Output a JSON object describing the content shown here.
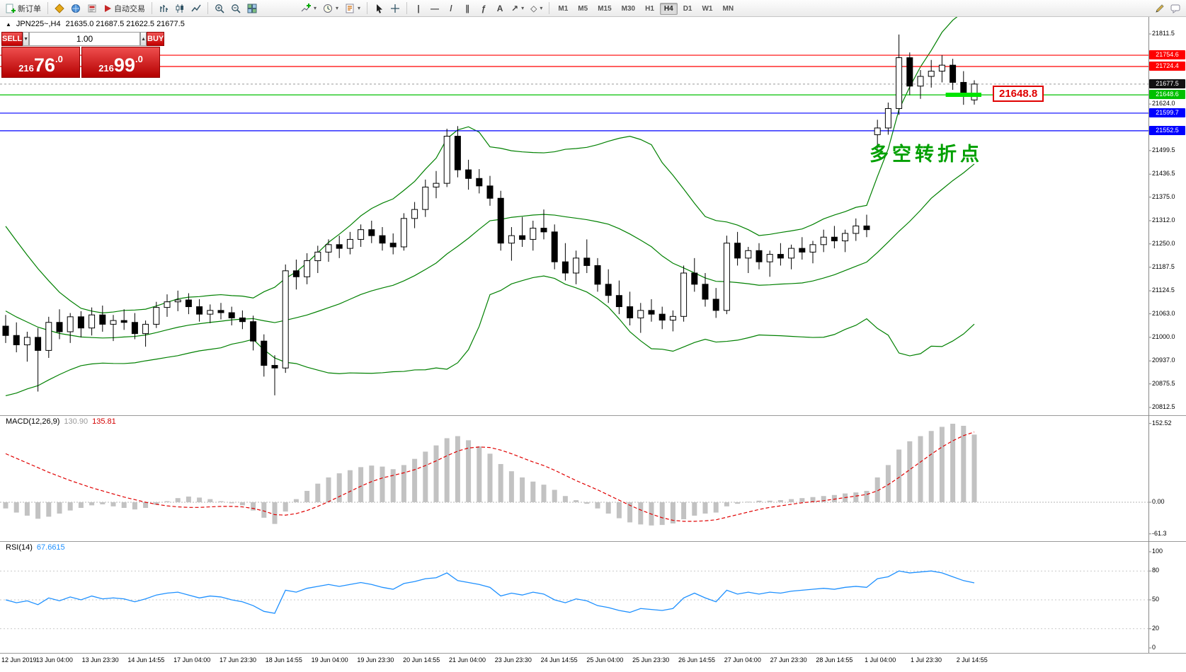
{
  "colors": {
    "bb_green": "#008000",
    "red_line": "#FF0000",
    "green_line": "#00C000",
    "blue_line": "#0000FF",
    "macd_hist": "#C2C2C2",
    "macd_signal": "#E00000",
    "rsi_line": "#1E90FF",
    "annotation_green": "#00A000",
    "highlight_lime": "#00E400",
    "panel_red": "#D40000"
  },
  "toolbar": {
    "new_order": "新订单",
    "autotrading": "自动交易",
    "timeframes": [
      "M1",
      "M5",
      "M15",
      "M30",
      "H1",
      "H4",
      "D1",
      "W1",
      "MN"
    ],
    "active_timeframe": "H4"
  },
  "chart": {
    "marker": "▲",
    "symbol_period": "JPN225~,H4",
    "ohlc": "21635.0 21687.5 21622.5 21677.5"
  },
  "trade_panel": {
    "sell_label": "SELL",
    "buy_label": "BUY",
    "volume": "1.00",
    "sell_price": {
      "pre": "216",
      "big": "76",
      "dec": ".0",
      "full": "21676.0"
    },
    "buy_price": {
      "pre": "216",
      "big": "99",
      "dec": ".0",
      "full": "21699.0"
    }
  },
  "annotation": {
    "text": "多空转折点"
  },
  "time_axis": {
    "labels": [
      "12 Jun 2019",
      "13 Jun 04:00",
      "13 Jun 23:30",
      "14 Jun 14:55",
      "17 Jun 04:00",
      "17 Jun 23:30",
      "18 Jun 14:55",
      "19 Jun 04:00",
      "19 Jun 23:30",
      "20 Jun 14:55",
      "21 Jun 04:00",
      "23 Jun 23:30",
      "24 Jun 14:55",
      "25 Jun 04:00",
      "25 Jun 23:30",
      "26 Jun 14:55",
      "27 Jun 04:00",
      "27 Jun 23:30",
      "28 Jun 14:55",
      "1 Jul 04:00",
      "1 Jul 23:30",
      "2 Jul 14:55"
    ]
  },
  "chart_data": {
    "type": "candlestick",
    "symbol": "JPN225",
    "timeframe": "H4",
    "price_axis_labels": [
      "21811.5",
      "21624.0",
      "21499.5",
      "21436.5",
      "21375.0",
      "21312.0",
      "21250.0",
      "21187.5",
      "21124.5",
      "21063.0",
      "21000.0",
      "20937.0",
      "20875.5",
      "20812.5"
    ],
    "candles": [
      [
        21030,
        21060,
        20985,
        21005
      ],
      [
        21005,
        21040,
        20960,
        20980
      ],
      [
        20980,
        21015,
        20935,
        21000
      ],
      [
        21000,
        21025,
        20855,
        20965
      ],
      [
        20965,
        21055,
        20945,
        21040
      ],
      [
        21040,
        21075,
        20995,
        21015
      ],
      [
        21015,
        21065,
        20985,
        21055
      ],
      [
        21055,
        21070,
        21000,
        21025
      ],
      [
        21025,
        21080,
        21005,
        21060
      ],
      [
        21060,
        21085,
        21015,
        21035
      ],
      [
        21035,
        21060,
        20990,
        21045
      ],
      [
        21045,
        21075,
        21020,
        21040
      ],
      [
        21040,
        21065,
        20995,
        21010
      ],
      [
        21010,
        21045,
        20975,
        21035
      ],
      [
        21035,
        21095,
        21025,
        21080
      ],
      [
        21080,
        21115,
        21055,
        21095
      ],
      [
        21095,
        21125,
        21070,
        21100
      ],
      [
        21100,
        21118,
        21062,
        21082
      ],
      [
        21082,
        21102,
        21042,
        21062
      ],
      [
        21062,
        21088,
        21038,
        21072
      ],
      [
        21072,
        21092,
        21048,
        21066
      ],
      [
        21066,
        21082,
        21032,
        21052
      ],
      [
        21052,
        21072,
        21022,
        21042
      ],
      [
        21042,
        21058,
        20965,
        20990
      ],
      [
        20990,
        21008,
        20895,
        20925
      ],
      [
        20925,
        20952,
        20845,
        20918
      ],
      [
        20918,
        21195,
        20905,
        21178
      ],
      [
        21178,
        21208,
        21128,
        21162
      ],
      [
        21162,
        21225,
        21142,
        21205
      ],
      [
        21205,
        21245,
        21172,
        21228
      ],
      [
        21228,
        21262,
        21202,
        21248
      ],
      [
        21248,
        21272,
        21212,
        21238
      ],
      [
        21238,
        21282,
        21222,
        21262
      ],
      [
        21262,
        21302,
        21242,
        21288
      ],
      [
        21288,
        21312,
        21252,
        21272
      ],
      [
        21272,
        21295,
        21232,
        21252
      ],
      [
        21252,
        21278,
        21222,
        21242
      ],
      [
        21242,
        21332,
        21232,
        21318
      ],
      [
        21318,
        21362,
        21292,
        21342
      ],
      [
        21342,
        21422,
        21322,
        21402
      ],
      [
        21402,
        21445,
        21372,
        21412
      ],
      [
        21412,
        21558,
        21402,
        21538
      ],
      [
        21538,
        21565,
        21428,
        21448
      ],
      [
        21448,
        21475,
        21395,
        21425
      ],
      [
        21425,
        21450,
        21385,
        21405
      ],
      [
        21405,
        21432,
        21352,
        21372
      ],
      [
        21372,
        21392,
        21232,
        21252
      ],
      [
        21252,
        21295,
        21205,
        21272
      ],
      [
        21272,
        21322,
        21242,
        21262
      ],
      [
        21262,
        21312,
        21232,
        21292
      ],
      [
        21292,
        21342,
        21262,
        21282
      ],
      [
        21282,
        21302,
        21182,
        21202
      ],
      [
        21202,
        21252,
        21152,
        21172
      ],
      [
        21172,
        21232,
        21142,
        21212
      ],
      [
        21212,
        21262,
        21172,
        21192
      ],
      [
        21192,
        21212,
        21122,
        21142
      ],
      [
        21142,
        21182,
        21092,
        21112
      ],
      [
        21112,
        21152,
        21062,
        21082
      ],
      [
        21082,
        21122,
        21032,
        21052
      ],
      [
        21052,
        21092,
        21012,
        21072
      ],
      [
        21072,
        21102,
        21042,
        21062
      ],
      [
        21062,
        21082,
        21022,
        21046
      ],
      [
        21046,
        21072,
        21016,
        21056
      ],
      [
        21056,
        21192,
        21042,
        21172
      ],
      [
        21172,
        21212,
        21122,
        21142
      ],
      [
        21142,
        21172,
        21082,
        21102
      ],
      [
        21102,
        21132,
        21052,
        21072
      ],
      [
        21072,
        21272,
        21062,
        21252
      ],
      [
        21252,
        21282,
        21192,
        21212
      ],
      [
        21212,
        21242,
        21172,
        21232
      ],
      [
        21232,
        21252,
        21182,
        21202
      ],
      [
        21202,
        21232,
        21162,
        21222
      ],
      [
        21222,
        21252,
        21192,
        21212
      ],
      [
        21212,
        21248,
        21182,
        21238
      ],
      [
        21238,
        21268,
        21208,
        21228
      ],
      [
        21228,
        21258,
        21198,
        21248
      ],
      [
        21248,
        21288,
        21228,
        21268
      ],
      [
        21268,
        21298,
        21238,
        21258
      ],
      [
        21258,
        21288,
        21228,
        21278
      ],
      [
        21278,
        21318,
        21258,
        21298
      ],
      [
        21298,
        21328,
        21268,
        21288
      ],
      [
        21542,
        21582,
        21505,
        21560
      ],
      [
        21560,
        21628,
        21542,
        21612
      ],
      [
        21612,
        21810,
        21595,
        21748
      ],
      [
        21748,
        21762,
        21648,
        21672
      ],
      [
        21672,
        21715,
        21638,
        21698
      ],
      [
        21698,
        21742,
        21668,
        21712
      ],
      [
        21712,
        21755,
        21682,
        21728
      ],
      [
        21728,
        21745,
        21662,
        21682
      ],
      [
        21682,
        21712,
        21622,
        21648
      ],
      [
        21635,
        21687.5,
        21622.5,
        21677.5
      ]
    ],
    "bollinger": {
      "period": 20,
      "deviation": 2,
      "seed_closes": [
        21300,
        21270,
        21240,
        21210,
        21180,
        21150,
        21120,
        21090,
        21060,
        21030,
        21000,
        20980,
        20960,
        20950,
        20950,
        20960,
        20970,
        20985,
        21000
      ]
    },
    "hlines": [
      {
        "price": 21754.6,
        "label": "21754.6",
        "color": "#FF0000"
      },
      {
        "price": 21724.4,
        "label": "21724.4",
        "color": "#FF0000"
      },
      {
        "price": 21648.6,
        "label": "21648.6",
        "color": "#00C000"
      },
      {
        "price": 21599.7,
        "label": "21599.7",
        "color": "#0000FF"
      },
      {
        "price": 21552.5,
        "label": "21552.5",
        "color": "#0000FF"
      }
    ],
    "current_price": {
      "value": 21677.5,
      "label": "21677.5"
    },
    "highlight": {
      "price": 21648.8,
      "label": "21648.8",
      "bar_start": 88,
      "bar_end": 90,
      "color": "#00E400"
    },
    "macd": {
      "label": "MACD(12,26,9)",
      "value_main": "130.90",
      "value_signal": "135.81",
      "scale_labels": [
        "152.52",
        "0.00",
        "-61.3"
      ],
      "scale_values": [
        152.52,
        0,
        -61.3
      ],
      "histogram": [
        -12,
        -20,
        -26,
        -32,
        -28,
        -22,
        -16,
        -11,
        -6,
        -4,
        -8,
        -11,
        -14,
        -11,
        -5,
        2,
        8,
        11,
        9,
        6,
        2,
        -2,
        -6,
        -16,
        -30,
        -42,
        -18,
        6,
        22,
        36,
        48,
        56,
        62,
        68,
        71,
        69,
        64,
        72,
        84,
        98,
        110,
        124,
        128,
        120,
        108,
        94,
        74,
        60,
        48,
        40,
        34,
        24,
        12,
        4,
        -3,
        -12,
        -22,
        -31,
        -39,
        -43,
        -45,
        -44,
        -41,
        -33,
        -26,
        -22,
        -20,
        -8,
        -3,
        1,
        3,
        3,
        4,
        6,
        8,
        10,
        12,
        14,
        17,
        19,
        22,
        48,
        72,
        102,
        118,
        128,
        138,
        146,
        152,
        148,
        131
      ],
      "signal": [
        94,
        85,
        76,
        67,
        58,
        50,
        42,
        35,
        28,
        22,
        16,
        10,
        5,
        0,
        -4,
        -7,
        -9,
        -10,
        -10,
        -9,
        -8,
        -8,
        -9,
        -12,
        -17,
        -24,
        -25,
        -22,
        -16,
        -8,
        1,
        11,
        21,
        31,
        40,
        47,
        52,
        57,
        63,
        71,
        80,
        90,
        99,
        105,
        107,
        106,
        101,
        94,
        86,
        78,
        71,
        62,
        52,
        42,
        33,
        24,
        14,
        4,
        -6,
        -15,
        -23,
        -30,
        -35,
        -37,
        -37,
        -36,
        -34,
        -29,
        -24,
        -19,
        -14,
        -10,
        -7,
        -4,
        -1,
        1,
        3,
        6,
        9,
        12,
        15,
        22,
        34,
        48,
        63,
        78,
        93,
        107,
        119,
        129,
        136
      ]
    },
    "rsi": {
      "label": "RSI(14)",
      "value": "67.6615",
      "scale_labels": [
        "100",
        "80",
        "50",
        "20",
        "0"
      ],
      "scale_values": [
        100,
        80,
        50,
        20,
        0
      ],
      "levels": [
        80,
        50,
        20
      ],
      "series": [
        50,
        47,
        49,
        45,
        52,
        49,
        53,
        50,
        54,
        51,
        52,
        51,
        48,
        51,
        55,
        57,
        58,
        55,
        52,
        54,
        53,
        50,
        48,
        44,
        38,
        36,
        60,
        58,
        62,
        64,
        66,
        64,
        66,
        68,
        66,
        63,
        61,
        67,
        69,
        72,
        73,
        78,
        70,
        68,
        66,
        63,
        54,
        57,
        55,
        58,
        56,
        50,
        47,
        51,
        49,
        44,
        42,
        39,
        37,
        41,
        40,
        39,
        41,
        52,
        57,
        52,
        48,
        60,
        56,
        58,
        56,
        58,
        57,
        59,
        60,
        61,
        62,
        61,
        63,
        64,
        63,
        72,
        74,
        80,
        78,
        79,
        80,
        78,
        74,
        70,
        67.66
      ]
    }
  }
}
